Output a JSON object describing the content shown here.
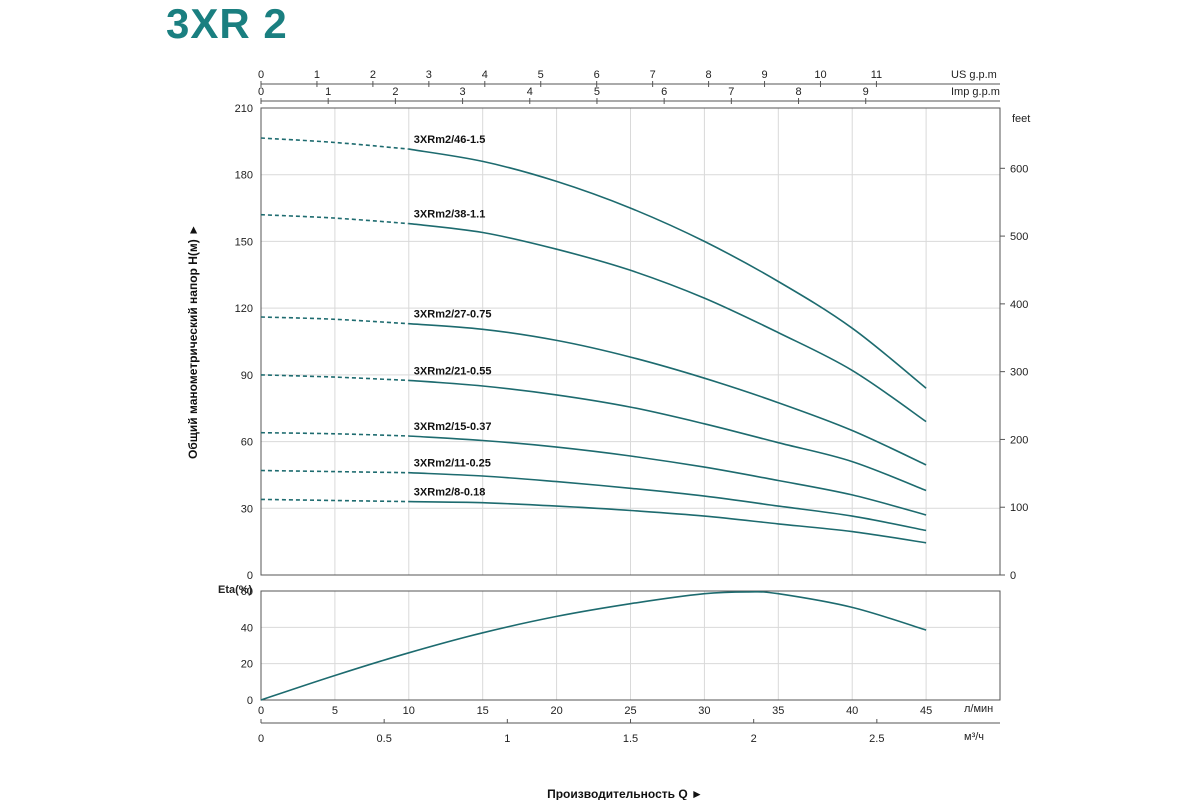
{
  "page_title": "3XR 2",
  "colors": {
    "title": "#1a7f80",
    "curve": "#1d6b6f",
    "grid": "#d9d9d9",
    "frame": "#555555"
  },
  "chart_data": [
    {
      "type": "line",
      "title": "",
      "xlabel": "Производительность  Q  ►",
      "ylabel": "Общий манометрический напор H(м)  ►",
      "x_unit": "л/мин",
      "xlim": [
        0,
        50
      ],
      "ylim": [
        0,
        210
      ],
      "yticks": [
        0,
        30,
        60,
        90,
        120,
        150,
        180,
        210
      ],
      "xticks": [
        0,
        5,
        10,
        15,
        20,
        25,
        30,
        35,
        40,
        45
      ],
      "secondary_y": {
        "label": "feet",
        "ticks": [
          0,
          100,
          200,
          300,
          400,
          500,
          600
        ]
      },
      "top_axes": [
        {
          "label": "US g.p.m",
          "ticks": [
            0,
            1,
            2,
            3,
            4,
            5,
            6,
            7,
            8,
            9,
            10,
            11
          ]
        },
        {
          "label": "Imp g.p.m",
          "ticks": [
            0,
            1,
            2,
            3,
            4,
            5,
            6,
            7,
            8,
            9
          ]
        }
      ],
      "bottom_axis_secondary": {
        "label": "м³/ч",
        "ticks": [
          "0",
          "0.5",
          "1",
          "1.5",
          "2",
          "2.5"
        ],
        "values": [
          0,
          0.5,
          1,
          1.5,
          2,
          2.5
        ]
      },
      "grid": true,
      "x": [
        0,
        5,
        10,
        15,
        20,
        25,
        30,
        35,
        40,
        45
      ],
      "dashed_until_x": 10,
      "series": [
        {
          "name": "3XRm2/46-1.5",
          "values": [
            196.5,
            194.5,
            191.5,
            186,
            177,
            165,
            150,
            132,
            111,
            84
          ]
        },
        {
          "name": "3XRm2/38-1.1",
          "values": [
            162,
            160.5,
            158,
            154,
            146.5,
            137,
            124.5,
            109,
            92,
            69
          ]
        },
        {
          "name": "3XRm2/27-0.75",
          "values": [
            116,
            115,
            113,
            110.5,
            105.5,
            98,
            88.5,
            77.5,
            65,
            49.5
          ]
        },
        {
          "name": "3XRm2/21-0.55",
          "values": [
            90,
            89,
            87.5,
            85,
            81,
            75.5,
            68,
            59.5,
            51,
            38
          ]
        },
        {
          "name": "3XRm2/15-0.37",
          "values": [
            64,
            63.5,
            62.5,
            60.5,
            57.5,
            53.5,
            48.5,
            42.5,
            36,
            27
          ]
        },
        {
          "name": "3XRm2/11-0.25",
          "values": [
            47,
            46.5,
            46,
            44.5,
            42,
            39,
            35.5,
            31,
            26.5,
            20
          ]
        },
        {
          "name": "3XRm2/8-0.18",
          "values": [
            34,
            33.5,
            33,
            32.5,
            31,
            29,
            26.5,
            23,
            19.5,
            14.5
          ]
        }
      ]
    },
    {
      "type": "line",
      "title": "",
      "ylabel": "Eta(%)",
      "xlim": [
        0,
        50
      ],
      "ylim": [
        0,
        60
      ],
      "yticks": [
        0,
        20,
        40,
        60
      ],
      "grid": true,
      "x": [
        0,
        5,
        10,
        15,
        20,
        25,
        30,
        33,
        35,
        40,
        45
      ],
      "values": [
        0,
        13.5,
        26,
        37,
        46,
        53,
        58.5,
        59.5,
        58.5,
        51,
        38.5
      ]
    }
  ]
}
